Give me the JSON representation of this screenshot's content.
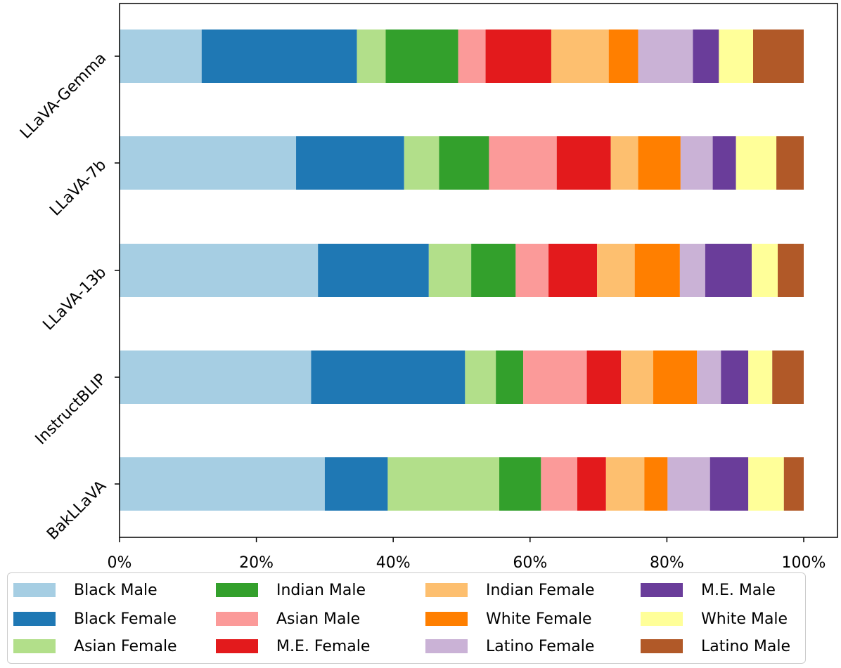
{
  "chart_data": {
    "type": "bar",
    "orientation": "horizontal",
    "stacked": true,
    "categories": [
      "LLaVA-Gemma",
      "LLaVA-7b",
      "LLaVA-13b",
      "InstructBLIP",
      "BakLLaVA"
    ],
    "xlim": [
      0,
      100
    ],
    "x_ticks": [
      "0%",
      "20%",
      "40%",
      "60%",
      "80%",
      "100%"
    ],
    "grid": false,
    "legend_position": "bottom",
    "series": [
      {
        "name": "Black Male",
        "color": "#a6cee3",
        "values": [
          12.0,
          25.8,
          29.0,
          28.0,
          30.0
        ]
      },
      {
        "name": "Black Female",
        "color": "#1f78b4",
        "values": [
          22.7,
          15.8,
          16.2,
          22.5,
          9.2
        ]
      },
      {
        "name": "Asian Female",
        "color": "#b2df8a",
        "values": [
          4.2,
          5.1,
          6.2,
          4.5,
          16.3
        ]
      },
      {
        "name": "Indian Male",
        "color": "#33a02c",
        "values": [
          10.6,
          7.3,
          6.5,
          4.0,
          6.1
        ]
      },
      {
        "name": "Asian Male",
        "color": "#fb9a99",
        "values": [
          4.0,
          9.9,
          4.8,
          9.3,
          5.3
        ]
      },
      {
        "name": "M.E. Female",
        "color": "#e31a1c",
        "values": [
          9.6,
          7.9,
          7.1,
          5.0,
          4.2
        ]
      },
      {
        "name": "Indian Female",
        "color": "#fdbf6f",
        "values": [
          8.4,
          4.0,
          5.5,
          4.7,
          5.6
        ]
      },
      {
        "name": "White Female",
        "color": "#ff7f00",
        "values": [
          4.3,
          6.2,
          6.6,
          6.4,
          3.4
        ]
      },
      {
        "name": "Latino Female",
        "color": "#cab2d6",
        "values": [
          8.0,
          4.7,
          3.7,
          3.5,
          6.2
        ]
      },
      {
        "name": "M.E. Male",
        "color": "#6a3d9a",
        "values": [
          3.8,
          3.4,
          6.8,
          4.0,
          5.6
        ]
      },
      {
        "name": "White Male",
        "color": "#ffff99",
        "values": [
          5.0,
          5.9,
          3.8,
          3.5,
          5.2
        ]
      },
      {
        "name": "Latino Male",
        "color": "#b15928",
        "values": [
          7.4,
          4.0,
          3.8,
          4.6,
          2.9
        ]
      }
    ],
    "legend_order": [
      "Black Male",
      "Black Female",
      "Asian Female",
      "Indian Male",
      "Asian Male",
      "M.E. Female",
      "Indian Female",
      "White Female",
      "Latino Female",
      "M.E. Male",
      "White Male",
      "Latino Male"
    ]
  }
}
